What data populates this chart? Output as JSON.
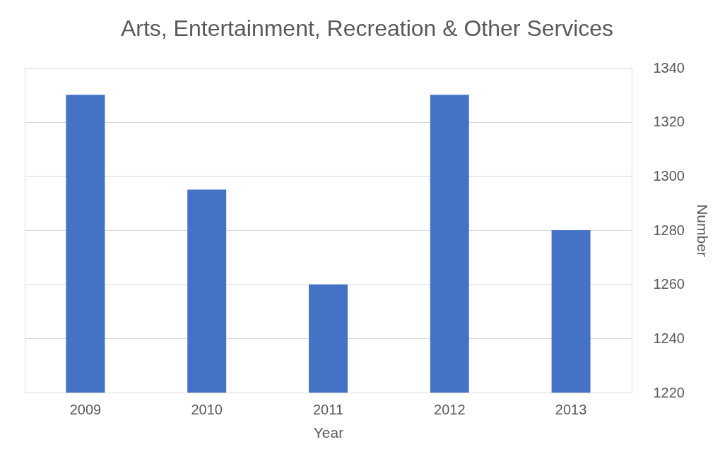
{
  "chart_data": {
    "type": "bar",
    "title": "Arts, Entertainment, Recreation & Other Services",
    "xlabel": "Year",
    "ylabel": "Number",
    "categories": [
      "2009",
      "2010",
      "2011",
      "2012",
      "2013"
    ],
    "values": [
      1330,
      1295,
      1260,
      1330,
      1280
    ],
    "color": "#4472c4",
    "ylim": [
      1220,
      1340
    ],
    "yticks": [
      1220,
      1240,
      1260,
      1280,
      1300,
      1320,
      1340
    ],
    "grid": "y"
  }
}
